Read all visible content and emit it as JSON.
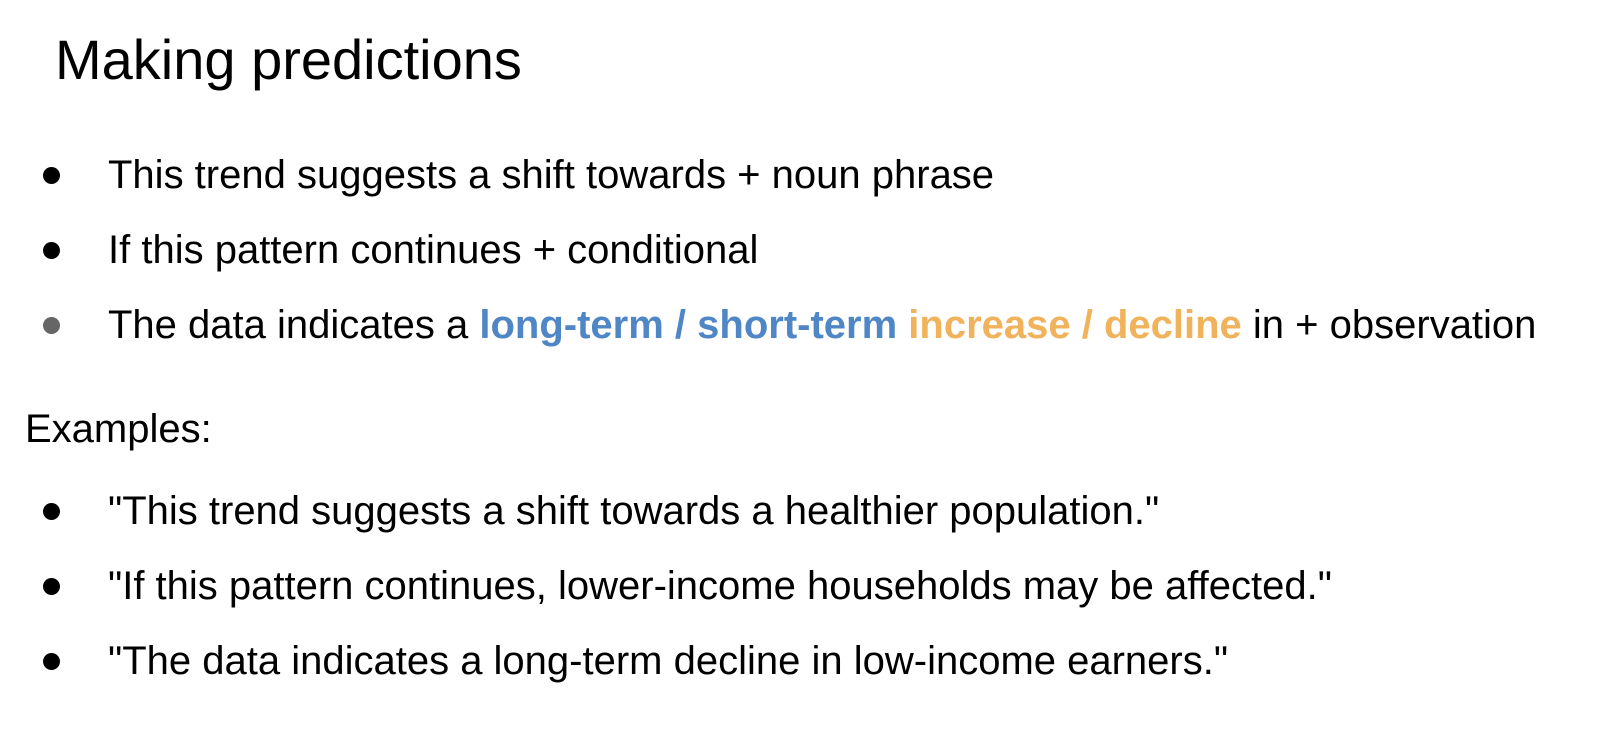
{
  "title": "Making predictions",
  "patterns": [
    {
      "text": "This trend suggests a shift towards + noun phrase"
    },
    {
      "text": "If this pattern continues + conditional"
    },
    {
      "prefix": "The data indicates a ",
      "highlight_blue": "long-term / short-term",
      "space": " ",
      "highlight_orange": "increase / decline",
      "suffix": " in + observation"
    }
  ],
  "examples_label": "Examples:",
  "examples": [
    {
      "text": "\"This trend suggests a shift towards a healthier population.\""
    },
    {
      "text": "\"If this pattern continues, lower-income households may be affected.\""
    },
    {
      "text": "\"The data indicates a long-term decline in low-income earners.\""
    }
  ],
  "colors": {
    "blue_highlight": "#4f86c6",
    "orange_highlight": "#f0b25a",
    "grey_bullet": "#666666"
  }
}
